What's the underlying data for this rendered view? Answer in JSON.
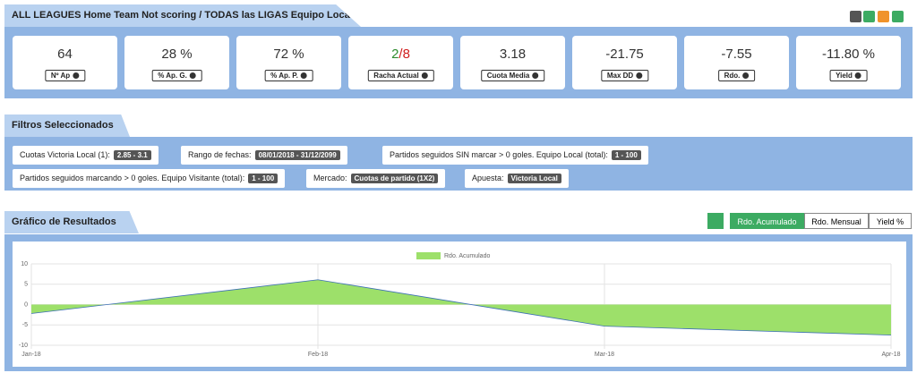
{
  "header": {
    "title": "ALL LEAGUES Home Team Not scoring / TODAS las LIGAS Equipo Local SIN marcar"
  },
  "stats": [
    {
      "value": "64",
      "label": "Nº Ap"
    },
    {
      "value": "28 %",
      "label": "% Ap. G."
    },
    {
      "value": "72 %",
      "label": "% Ap. P."
    },
    {
      "value_parts": [
        "2",
        "/8"
      ],
      "label": "Racha Actual"
    },
    {
      "value": "3.18",
      "label": "Cuota Media"
    },
    {
      "value": "-21.75",
      "label": "Max DD"
    },
    {
      "value": "-7.55",
      "label": "Rdo."
    },
    {
      "value": "-11.80 %",
      "label": "Yield"
    }
  ],
  "filters": {
    "title": "Filtros Seleccionados",
    "items": [
      {
        "label": "Cuotas Victoria Local (1):",
        "value": "2.85 - 3.1"
      },
      {
        "label": "Rango de fechas:",
        "value": "08/01/2018 - 31/12/2099"
      },
      {
        "label": "Partidos seguidos SIN marcar > 0 goles. Equipo Local (total):",
        "value": "1 - 100"
      },
      {
        "label": "Partidos seguidos marcando > 0 goles. Equipo Visitante (total):",
        "value": "1 - 100"
      },
      {
        "label": "Mercado:",
        "value": "Cuotas de partido (1X2)"
      },
      {
        "label": "Apuesta:",
        "value": "Victoria Local"
      }
    ]
  },
  "results": {
    "title": "Gráfico de Resultados",
    "tabs": [
      "Rdo. Acumulado",
      "Rdo. Mensual",
      "Yield %"
    ]
  },
  "chart_data": {
    "type": "area",
    "categories": [
      "Jan-18",
      "Feb-18",
      "Mar-18",
      "Apr-18"
    ],
    "series": [
      {
        "name": "Rdo. Acumulado",
        "color": "#9de06a",
        "values": [
          -2.2,
          6.1,
          -5.3,
          -7.5
        ]
      }
    ],
    "ylim": [
      -10,
      10
    ],
    "yticks": [
      -10,
      -5,
      0,
      5,
      10
    ],
    "grid": true
  }
}
